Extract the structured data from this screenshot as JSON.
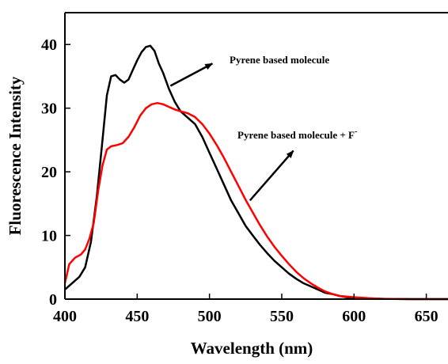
{
  "chart_data": {
    "type": "line",
    "xlabel": "Wavelength (nm)",
    "ylabel": "Fluorescence Intensity",
    "xlim": [
      400,
      665
    ],
    "ylim": [
      0,
      45
    ],
    "x_ticks": [
      "400",
      "450",
      "500",
      "550",
      "600",
      "650"
    ],
    "y_ticks": [
      "0",
      "10",
      "20",
      "30",
      "40"
    ],
    "x_tick_values": [
      400,
      450,
      500,
      550,
      600,
      650
    ],
    "y_tick_values": [
      0,
      10,
      20,
      30,
      40
    ],
    "grid": false,
    "legend": "none",
    "series": [
      {
        "color": "#000000",
        "points": [
          [
            400,
            1.5
          ],
          [
            405,
            2.5
          ],
          [
            410,
            3.5
          ],
          [
            414,
            5.0
          ],
          [
            418,
            9.0
          ],
          [
            422,
            16.0
          ],
          [
            426,
            25.0
          ],
          [
            429,
            32.0
          ],
          [
            432,
            35.0
          ],
          [
            435,
            35.2
          ],
          [
            438,
            34.5
          ],
          [
            441,
            34.0
          ],
          [
            444,
            34.5
          ],
          [
            447,
            36.0
          ],
          [
            450,
            37.5
          ],
          [
            453,
            38.8
          ],
          [
            456,
            39.6
          ],
          [
            459,
            39.8
          ],
          [
            462,
            39.0
          ],
          [
            465,
            37.0
          ],
          [
            468,
            35.5
          ],
          [
            472,
            33.0
          ],
          [
            476,
            31.0
          ],
          [
            480,
            29.5
          ],
          [
            485,
            28.5
          ],
          [
            490,
            27.5
          ],
          [
            495,
            25.5
          ],
          [
            500,
            23.0
          ],
          [
            505,
            20.5
          ],
          [
            510,
            18.0
          ],
          [
            515,
            15.5
          ],
          [
            520,
            13.5
          ],
          [
            525,
            11.5
          ],
          [
            530,
            10.0
          ],
          [
            535,
            8.5
          ],
          [
            540,
            7.2
          ],
          [
            545,
            6.0
          ],
          [
            550,
            5.0
          ],
          [
            555,
            4.0
          ],
          [
            560,
            3.2
          ],
          [
            565,
            2.5
          ],
          [
            570,
            2.0
          ],
          [
            575,
            1.5
          ],
          [
            580,
            1.0
          ],
          [
            585,
            0.8
          ],
          [
            590,
            0.5
          ],
          [
            595,
            0.3
          ],
          [
            600,
            0.2
          ],
          [
            610,
            0.1
          ],
          [
            620,
            0.05
          ],
          [
            640,
            0.0
          ],
          [
            665,
            0.0
          ]
        ]
      },
      {
        "color": "#ff0000",
        "points": [
          [
            400,
            2.5
          ],
          [
            403,
            5.5
          ],
          [
            407,
            6.5
          ],
          [
            411,
            7.0
          ],
          [
            414,
            7.8
          ],
          [
            417,
            9.5
          ],
          [
            420,
            12.0
          ],
          [
            423,
            17.0
          ],
          [
            426,
            21.0
          ],
          [
            429,
            23.5
          ],
          [
            432,
            24.0
          ],
          [
            436,
            24.2
          ],
          [
            440,
            24.5
          ],
          [
            444,
            25.5
          ],
          [
            448,
            27.0
          ],
          [
            452,
            28.8
          ],
          [
            456,
            30.0
          ],
          [
            460,
            30.6
          ],
          [
            464,
            30.8
          ],
          [
            468,
            30.6
          ],
          [
            472,
            30.2
          ],
          [
            476,
            29.8
          ],
          [
            480,
            29.5
          ],
          [
            485,
            29.2
          ],
          [
            490,
            28.6
          ],
          [
            495,
            27.5
          ],
          [
            500,
            26.0
          ],
          [
            505,
            24.2
          ],
          [
            510,
            22.2
          ],
          [
            515,
            20.0
          ],
          [
            520,
            17.8
          ],
          [
            525,
            15.6
          ],
          [
            530,
            13.6
          ],
          [
            535,
            11.6
          ],
          [
            540,
            9.8
          ],
          [
            545,
            8.2
          ],
          [
            550,
            6.8
          ],
          [
            555,
            5.5
          ],
          [
            560,
            4.3
          ],
          [
            565,
            3.3
          ],
          [
            570,
            2.5
          ],
          [
            575,
            1.8
          ],
          [
            580,
            1.2
          ],
          [
            585,
            0.8
          ],
          [
            590,
            0.5
          ],
          [
            600,
            0.3
          ],
          [
            610,
            0.15
          ],
          [
            620,
            0.05
          ],
          [
            640,
            0.0
          ],
          [
            665,
            0.0
          ]
        ]
      }
    ],
    "annotations": [
      {
        "text": "Pyrene based molecule",
        "sup": "",
        "arrow_from": [
          473,
          33.5
        ],
        "arrow_to": [
          502,
          37.0
        ]
      },
      {
        "text": "Pyrene based molecule + F",
        "sup": "-",
        "arrow_from": [
          528,
          15.5
        ],
        "arrow_to": [
          558,
          23.3
        ]
      }
    ]
  }
}
